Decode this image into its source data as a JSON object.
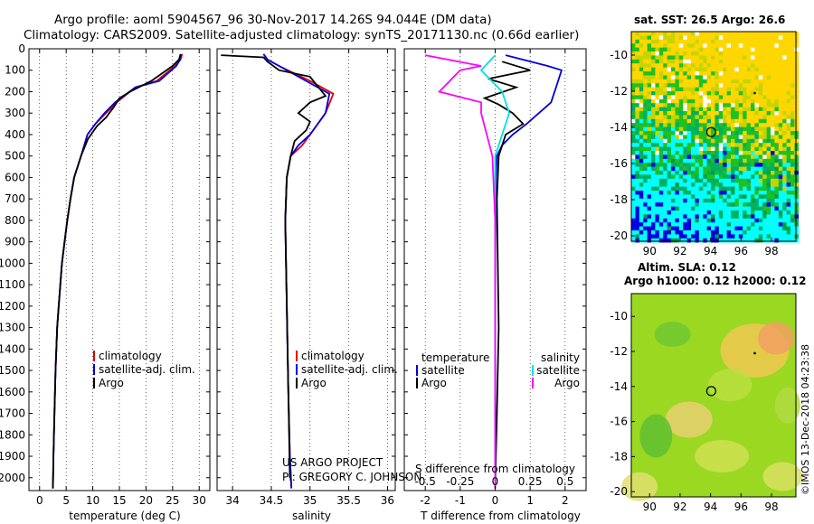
{
  "header": {
    "title1": "Argo profile: aoml 5904567_96 30-Nov-2017 14.26S 94.044E (DM data)",
    "title2": "Climatology: CARS2009. Satellite-adjusted climatology: synTS_20171130.nc (0.66d earlier)"
  },
  "colors": {
    "climatology": "#e00000",
    "satellite": "#0000e0",
    "argo": "#000000",
    "sal_sat": "#00e0e0",
    "sal_argo": "#ff00ff"
  },
  "depth_ticks": [
    0,
    100,
    200,
    300,
    400,
    500,
    600,
    700,
    800,
    900,
    1000,
    1100,
    1200,
    1300,
    1400,
    1500,
    1600,
    1700,
    1800,
    1900,
    2000
  ],
  "chart_data": [
    {
      "type": "line",
      "name": "temperature",
      "xlabel": "temperature (deg C)",
      "xlim": [
        -2,
        32
      ],
      "ylim": [
        0,
        2060
      ],
      "xticks": [
        0,
        5,
        10,
        15,
        20,
        25,
        30
      ],
      "legend": [
        "climatology",
        "satellite-adj. clim.",
        "Argo"
      ],
      "series": [
        {
          "name": "climatology",
          "color": "#e00000",
          "x": [
            26.8,
            26.5,
            25.5,
            22,
            18,
            14.5,
            12.5,
            10.5,
            9,
            7.8,
            6.5,
            5.8,
            5.2,
            4.7,
            4.2,
            3.9,
            3.6,
            3.3,
            3.0,
            2.8,
            2.6,
            2.5
          ],
          "y": [
            25,
            50,
            80,
            150,
            180,
            250,
            300,
            350,
            400,
            500,
            600,
            700,
            800,
            900,
            1000,
            1100,
            1200,
            1300,
            1500,
            1700,
            1900,
            2050
          ]
        },
        {
          "name": "satellite-adj. clim.",
          "color": "#0000e0",
          "x": [
            26.6,
            26.4,
            25.7,
            22.5,
            18,
            14.2,
            12.2,
            10.5,
            9,
            7.8,
            6.5,
            5.8,
            5.2,
            4.7,
            4.2,
            3.9,
            3.6,
            3.3,
            3.0,
            2.8,
            2.6,
            2.5
          ],
          "y": [
            25,
            50,
            80,
            150,
            180,
            250,
            300,
            350,
            400,
            500,
            600,
            700,
            800,
            900,
            1000,
            1100,
            1200,
            1300,
            1500,
            1700,
            1900,
            2050
          ]
        },
        {
          "name": "Argo",
          "color": "#000000",
          "x": [
            26.5,
            26.2,
            25,
            21,
            17,
            15,
            14,
            12.5,
            10.8,
            9.1,
            7.8,
            6.5,
            5.8,
            5.2,
            4.7,
            4.2,
            3.9,
            3.6,
            3.3,
            3.0,
            2.8,
            2.6,
            2.5
          ],
          "y": [
            25,
            50,
            80,
            150,
            200,
            230,
            270,
            320,
            360,
            420,
            500,
            600,
            700,
            800,
            900,
            1000,
            1100,
            1200,
            1300,
            1500,
            1700,
            1900,
            2050
          ]
        }
      ]
    },
    {
      "type": "line",
      "name": "salinity",
      "xlabel": "salinity",
      "xlim": [
        33.8,
        36.1
      ],
      "ylim": [
        0,
        2060
      ],
      "xticks": [
        34,
        34.5,
        35,
        35.5,
        36
      ],
      "legend": [
        "climatology",
        "satellite-adj. clim.",
        "Argo"
      ],
      "series": [
        {
          "name": "climatology",
          "color": "#e00000",
          "x": [
            34.4,
            34.45,
            34.6,
            35.0,
            35.3,
            35.2,
            35.0,
            34.9,
            34.75,
            34.7,
            34.68,
            34.7,
            34.72,
            34.74,
            34.76
          ],
          "y": [
            25,
            50,
            80,
            150,
            210,
            300,
            400,
            450,
            500,
            600,
            800,
            1200,
            1600,
            1900,
            2050
          ]
        },
        {
          "name": "satellite-adj. clim.",
          "color": "#0000e0",
          "x": [
            34.4,
            34.45,
            34.6,
            34.95,
            35.25,
            35.2,
            35.0,
            34.85,
            34.75,
            34.7,
            34.68,
            34.7,
            34.72,
            34.74,
            34.76
          ],
          "y": [
            25,
            50,
            80,
            150,
            210,
            300,
            400,
            450,
            500,
            600,
            800,
            1200,
            1600,
            1900,
            2050
          ]
        },
        {
          "name": "Argo",
          "color": "#000000",
          "x": [
            33.85,
            34.4,
            34.45,
            34.6,
            35.0,
            35.2,
            35.0,
            34.85,
            35.0,
            34.95,
            34.8,
            34.75,
            34.7,
            34.68,
            34.7,
            34.72,
            34.74
          ],
          "y": [
            30,
            40,
            60,
            100,
            130,
            220,
            250,
            300,
            340,
            380,
            430,
            500,
            600,
            800,
            1200,
            1600,
            2000
          ]
        }
      ]
    },
    {
      "type": "line",
      "name": "difference",
      "xlabel": "T difference from climatology",
      "xlabel2": "S difference from climatology",
      "xlim": [
        -2.6,
        2.6
      ],
      "xlim2": [
        -0.65,
        0.65
      ],
      "ylim": [
        0,
        2060
      ],
      "xticks": [
        -2,
        -1,
        0,
        1,
        2
      ],
      "xticks2": [
        -0.5,
        -0.25,
        0,
        0.25,
        0.5
      ],
      "legend_left": [
        "temperature",
        "satellite",
        "Argo"
      ],
      "legend_right": [
        "salinity",
        "satellite",
        "Argo"
      ],
      "series": [
        {
          "name": "T satellite",
          "color": "#0000e0",
          "x": [
            0.3,
            1.5,
            1.9,
            1.8,
            1.6,
            0.9,
            0.5,
            0.2,
            0.05,
            0.02,
            0,
            0,
            0
          ],
          "y": [
            30,
            80,
            100,
            150,
            250,
            350,
            400,
            450,
            500,
            600,
            1000,
            1500,
            2050
          ]
        },
        {
          "name": "T Argo",
          "color": "#000000",
          "x": [
            0.2,
            1.0,
            -0.2,
            0.6,
            -0.3,
            0.1,
            0.5,
            0.8,
            0.3,
            0.1,
            0.05,
            0.1,
            0.05,
            0
          ],
          "y": [
            60,
            100,
            140,
            180,
            230,
            260,
            300,
            350,
            400,
            500,
            700,
            1300,
            1700,
            2050
          ]
        },
        {
          "name": "S satellite",
          "color": "#00e0e0",
          "x": [
            0,
            -0.1,
            0.05,
            0.1,
            0.05,
            0,
            0,
            0,
            0,
            0
          ],
          "y": [
            30,
            100,
            200,
            300,
            400,
            500,
            800,
            1200,
            1600,
            2050
          ]
        },
        {
          "name": "S Argo",
          "color": "#ff00ff",
          "x": [
            -0.5,
            -0.1,
            -0.25,
            -0.4,
            -0.1,
            -0.1,
            -0.02,
            0,
            0,
            0
          ],
          "y": [
            30,
            80,
            100,
            200,
            250,
            300,
            500,
            800,
            1500,
            2050
          ]
        }
      ]
    }
  ],
  "projects": {
    "line1": "US ARGO PROJECT",
    "line2": "PI: GREGORY C. JOHNSON"
  },
  "map_sst": {
    "title": "sat. SST: 26.5 Argo: 26.6",
    "xticks": [
      90,
      92,
      94,
      96,
      98
    ],
    "yticks": [
      -10,
      -12,
      -14,
      -16,
      -18,
      -20
    ],
    "xlim": [
      88.8,
      99.6
    ],
    "ylim": [
      -20.3,
      -8.7
    ]
  },
  "map_sla": {
    "title1": "Altim. SLA: 0.12",
    "title2": "Argo h1000: 0.12 h2000: 0.12",
    "xticks": [
      90,
      92,
      94,
      96,
      98
    ],
    "yticks": [
      -10,
      -12,
      -14,
      -16,
      -18,
      -20
    ],
    "xlim": [
      88.8,
      99.6
    ],
    "ylim": [
      -20.3,
      -8.7
    ]
  },
  "argo_position": {
    "lon": 94.044,
    "lat": -14.26
  },
  "credit": "©IMOS 13-Dec-2018 04:23:38"
}
